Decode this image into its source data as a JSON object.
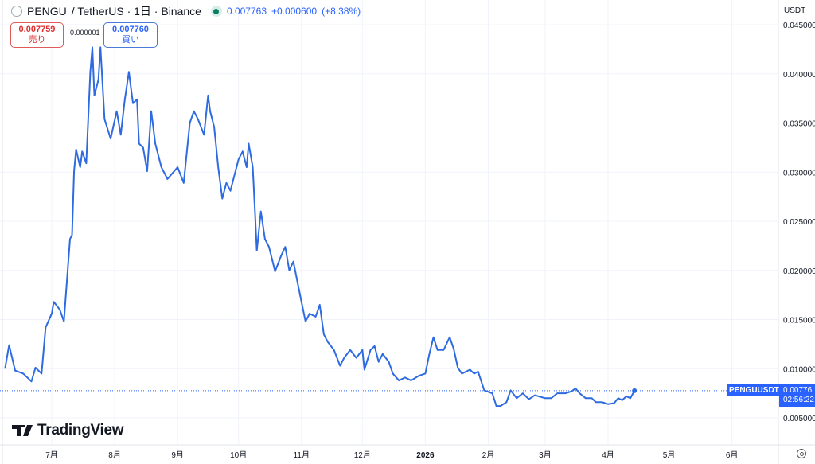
{
  "header": {
    "symbol": "PENGU",
    "pair": "/ TetherUS · 1日 · Binance",
    "last": "0.007763",
    "change": "+0.000600",
    "change_pct": "(+8.38%)",
    "status_color": "#0b7d62"
  },
  "trade": {
    "sell_price": "0.007759",
    "sell_label": "売り",
    "spread": "0.000001",
    "buy_price": "0.007760",
    "buy_label": "買い"
  },
  "branding": "TradingView",
  "price_label": {
    "symbol": "PENGUUSDT",
    "price": "0.00776",
    "countdown": "02:56:22"
  },
  "chart_data": {
    "type": "line",
    "unit": "USDT",
    "line_color": "#2f6be0",
    "grid": true,
    "ylim": [
      0.0025,
      0.0455
    ],
    "y_ticks": [
      "0.045000",
      "0.040000",
      "0.035000",
      "0.030000",
      "0.025000",
      "0.020000",
      "0.015000",
      "0.010000",
      "0.005000"
    ],
    "y_tick_values": [
      0.045,
      0.04,
      0.035,
      0.03,
      0.025,
      0.02,
      0.015,
      0.01,
      0.005
    ],
    "x_ticks": [
      {
        "label": "7月",
        "date": "2025-07-01"
      },
      {
        "label": "8月",
        "date": "2025-08-01"
      },
      {
        "label": "9月",
        "date": "2025-09-01"
      },
      {
        "label": "10月",
        "date": "2025-10-01"
      },
      {
        "label": "11月",
        "date": "2025-11-01"
      },
      {
        "label": "12月",
        "date": "2025-12-01"
      },
      {
        "label": "2026",
        "date": "2026-01-01",
        "bold": true
      },
      {
        "label": "2月",
        "date": "2026-02-01"
      },
      {
        "label": "3月",
        "date": "2026-03-01"
      },
      {
        "label": "4月",
        "date": "2026-04-01"
      },
      {
        "label": "5月",
        "date": "2026-05-01"
      },
      {
        "label": "6月",
        "date": "2026-06-01"
      }
    ],
    "current_price": 0.00776,
    "points": [
      [
        "2025-06-08",
        0.01
      ],
      [
        "2025-06-10",
        0.0124
      ],
      [
        "2025-06-13",
        0.0098
      ],
      [
        "2025-06-17",
        0.0095
      ],
      [
        "2025-06-21",
        0.0087
      ],
      [
        "2025-06-23",
        0.0101
      ],
      [
        "2025-06-26",
        0.0095
      ],
      [
        "2025-06-28",
        0.0142
      ],
      [
        "2025-07-01",
        0.0156
      ],
      [
        "2025-07-02",
        0.0168
      ],
      [
        "2025-07-05",
        0.016
      ],
      [
        "2025-07-07",
        0.0148
      ],
      [
        "2025-07-10",
        0.0232
      ],
      [
        "2025-07-11",
        0.0236
      ],
      [
        "2025-07-12",
        0.0301
      ],
      [
        "2025-07-13",
        0.0323
      ],
      [
        "2025-07-15",
        0.0305
      ],
      [
        "2025-07-16",
        0.0321
      ],
      [
        "2025-07-18",
        0.0309
      ],
      [
        "2025-07-20",
        0.0402
      ],
      [
        "2025-07-21",
        0.0427
      ],
      [
        "2025-07-22",
        0.0378
      ],
      [
        "2025-07-24",
        0.0394
      ],
      [
        "2025-07-25",
        0.0427
      ],
      [
        "2025-07-27",
        0.0354
      ],
      [
        "2025-07-30",
        0.0334
      ],
      [
        "2025-08-02",
        0.0362
      ],
      [
        "2025-08-04",
        0.0338
      ],
      [
        "2025-08-06",
        0.0374
      ],
      [
        "2025-08-08",
        0.0402
      ],
      [
        "2025-08-10",
        0.037
      ],
      [
        "2025-08-12",
        0.0374
      ],
      [
        "2025-08-13",
        0.0329
      ],
      [
        "2025-08-15",
        0.0325
      ],
      [
        "2025-08-17",
        0.0301
      ],
      [
        "2025-08-19",
        0.0362
      ],
      [
        "2025-08-21",
        0.0329
      ],
      [
        "2025-08-24",
        0.0305
      ],
      [
        "2025-08-27",
        0.0293
      ],
      [
        "2025-09-01",
        0.0305
      ],
      [
        "2025-09-04",
        0.0289
      ],
      [
        "2025-09-07",
        0.035
      ],
      [
        "2025-09-09",
        0.0362
      ],
      [
        "2025-09-11",
        0.0354
      ],
      [
        "2025-09-14",
        0.0338
      ],
      [
        "2025-09-16",
        0.0378
      ],
      [
        "2025-09-17",
        0.0362
      ],
      [
        "2025-09-19",
        0.0346
      ],
      [
        "2025-09-21",
        0.0305
      ],
      [
        "2025-09-23",
        0.0273
      ],
      [
        "2025-09-25",
        0.0289
      ],
      [
        "2025-09-27",
        0.0281
      ],
      [
        "2025-10-01",
        0.0313
      ],
      [
        "2025-10-03",
        0.0321
      ],
      [
        "2025-10-05",
        0.0305
      ],
      [
        "2025-10-06",
        0.0329
      ],
      [
        "2025-10-08",
        0.0305
      ],
      [
        "2025-10-09",
        0.0264
      ],
      [
        "2025-10-10",
        0.022
      ],
      [
        "2025-10-12",
        0.026
      ],
      [
        "2025-10-14",
        0.0232
      ],
      [
        "2025-10-16",
        0.0224
      ],
      [
        "2025-10-19",
        0.0199
      ],
      [
        "2025-10-22",
        0.0215
      ],
      [
        "2025-10-24",
        0.0224
      ],
      [
        "2025-10-26",
        0.02
      ],
      [
        "2025-10-28",
        0.0209
      ],
      [
        "2025-11-01",
        0.0168
      ],
      [
        "2025-11-03",
        0.0148
      ],
      [
        "2025-11-05",
        0.0156
      ],
      [
        "2025-11-08",
        0.0153
      ],
      [
        "2025-11-10",
        0.0165
      ],
      [
        "2025-11-12",
        0.0135
      ],
      [
        "2025-11-14",
        0.0127
      ],
      [
        "2025-11-17",
        0.0119
      ],
      [
        "2025-11-20",
        0.0103
      ],
      [
        "2025-11-22",
        0.0111
      ],
      [
        "2025-11-25",
        0.0119
      ],
      [
        "2025-11-28",
        0.0111
      ],
      [
        "2025-12-01",
        0.0119
      ],
      [
        "2025-12-02",
        0.0099
      ],
      [
        "2025-12-05",
        0.0119
      ],
      [
        "2025-12-07",
        0.0123
      ],
      [
        "2025-12-09",
        0.0107
      ],
      [
        "2025-12-11",
        0.0115
      ],
      [
        "2025-12-14",
        0.0107
      ],
      [
        "2025-12-16",
        0.0095
      ],
      [
        "2025-12-19",
        0.0088
      ],
      [
        "2025-12-22",
        0.0091
      ],
      [
        "2025-12-25",
        0.0088
      ],
      [
        "2025-12-29",
        0.0093
      ],
      [
        "2026-01-01",
        0.0095
      ],
      [
        "2026-01-03",
        0.0115
      ],
      [
        "2026-01-05",
        0.0132
      ],
      [
        "2026-01-07",
        0.0119
      ],
      [
        "2026-01-10",
        0.0119
      ],
      [
        "2026-01-13",
        0.0132
      ],
      [
        "2026-01-15",
        0.012
      ],
      [
        "2026-01-17",
        0.0101
      ],
      [
        "2026-01-19",
        0.0095
      ],
      [
        "2026-01-23",
        0.0099
      ],
      [
        "2026-01-25",
        0.0095
      ],
      [
        "2026-01-27",
        0.0097
      ],
      [
        "2026-01-30",
        0.0078
      ],
      [
        "2026-02-03",
        0.0075
      ],
      [
        "2026-02-05",
        0.0062
      ],
      [
        "2026-02-07",
        0.0062
      ],
      [
        "2026-02-10",
        0.0066
      ],
      [
        "2026-02-12",
        0.0078
      ],
      [
        "2026-02-15",
        0.007
      ],
      [
        "2026-02-18",
        0.0075
      ],
      [
        "2026-02-21",
        0.0069
      ],
      [
        "2026-02-24",
        0.0073
      ],
      [
        "2026-03-01",
        0.007
      ],
      [
        "2026-03-04",
        0.007
      ],
      [
        "2026-03-07",
        0.0075
      ],
      [
        "2026-03-11",
        0.0075
      ],
      [
        "2026-03-14",
        0.0077
      ],
      [
        "2026-03-16",
        0.008
      ],
      [
        "2026-03-18",
        0.0075
      ],
      [
        "2026-03-21",
        0.007
      ],
      [
        "2026-03-24",
        0.007
      ],
      [
        "2026-03-26",
        0.0066
      ],
      [
        "2026-03-29",
        0.0066
      ],
      [
        "2026-04-01",
        0.0064
      ],
      [
        "2026-04-04",
        0.0065
      ],
      [
        "2026-04-06",
        0.007
      ],
      [
        "2026-04-08",
        0.0068
      ],
      [
        "2026-04-10",
        0.0072
      ],
      [
        "2026-04-12",
        0.007
      ],
      [
        "2026-04-14",
        0.00776
      ]
    ]
  }
}
